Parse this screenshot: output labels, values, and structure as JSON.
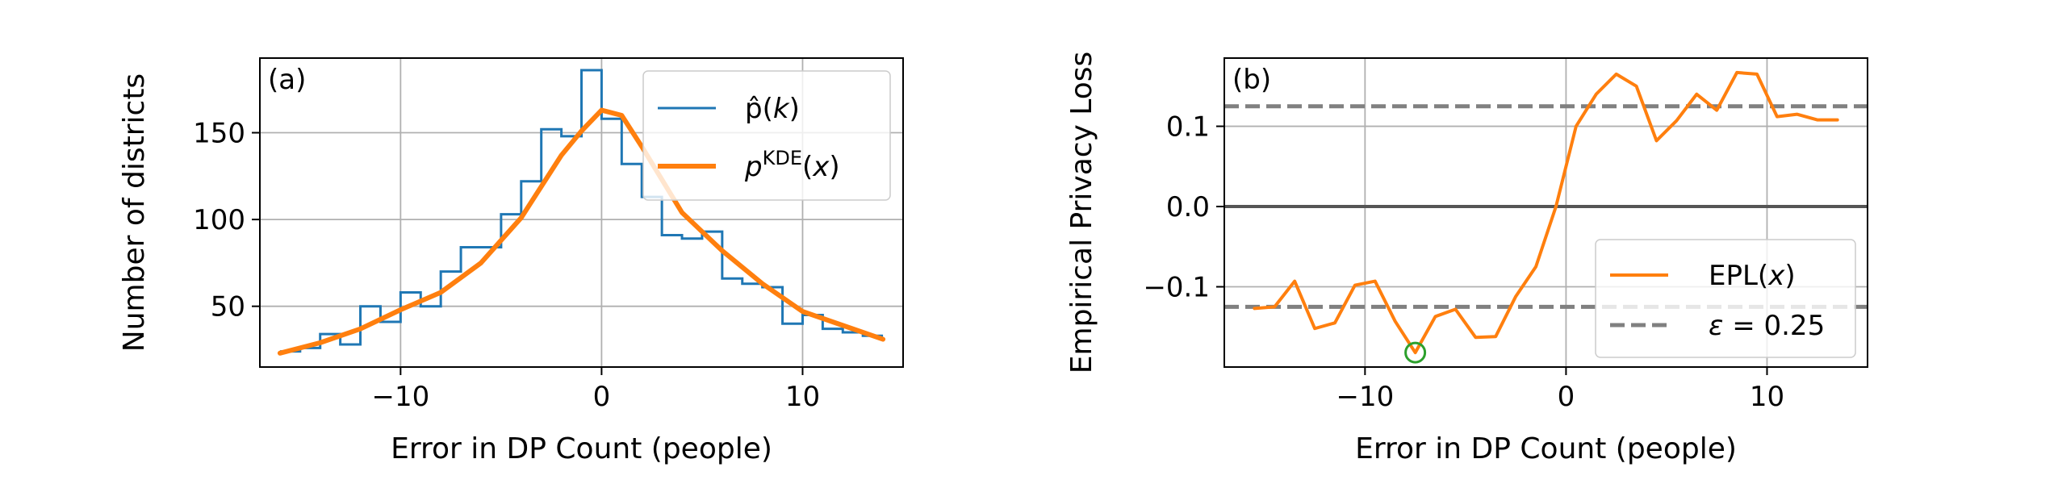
{
  "chart_data": [
    {
      "type": "line",
      "panel_label": "(a)",
      "xlabel": "Error in DP Count (people)",
      "ylabel": "Number of districts",
      "xlim": [
        -17,
        15
      ],
      "ylim": [
        15,
        193
      ],
      "xticks": [
        -10,
        0,
        10
      ],
      "xtick_labels": [
        "−10",
        "0",
        "10"
      ],
      "yticks": [
        50,
        100,
        150
      ],
      "ytick_labels": [
        "50",
        "100",
        "150"
      ],
      "grid": true,
      "legend_position": "top-right",
      "series": [
        {
          "name": "p̂(k)",
          "legend_label": {
            "base": "p̂(",
            "var": "k",
            "close": ")"
          },
          "style": "step",
          "color": "#1f77b4",
          "x": [
            -15.5,
            -14.5,
            -13.5,
            -12.5,
            -11.5,
            -10.5,
            -9.5,
            -8.5,
            -7.5,
            -6.5,
            -5.5,
            -4.5,
            -3.5,
            -2.5,
            -1.5,
            -0.5,
            0.5,
            1.5,
            2.5,
            3.5,
            4.5,
            5.5,
            6.5,
            7.5,
            8.5,
            9.5,
            10.5,
            11.5,
            12.5,
            13.5
          ],
          "values": [
            24,
            26,
            34,
            28,
            50,
            41,
            58,
            50,
            70,
            84,
            84,
            103,
            122,
            152,
            148,
            186,
            158,
            132,
            113,
            91,
            89,
            93,
            66,
            63,
            61,
            40,
            45,
            37,
            35,
            33
          ]
        },
        {
          "name": "pKDE(x)",
          "legend_label": {
            "base": "p",
            "sup": "KDE",
            "var": "x"
          },
          "style": "line",
          "color": "#ff7f0e",
          "x": [
            -16,
            -14,
            -12,
            -10,
            -8,
            -6,
            -4,
            -2,
            -1,
            0,
            1,
            2,
            4,
            6,
            8,
            10,
            12,
            14
          ],
          "values": [
            23,
            29,
            37,
            48,
            58,
            75,
            101,
            137,
            151,
            163,
            160,
            142,
            104,
            82,
            63,
            47,
            39,
            31
          ]
        }
      ]
    },
    {
      "type": "line",
      "panel_label": "(b)",
      "xlabel": "Error in DP Count (people)",
      "ylabel": "Empirical Privacy Loss",
      "xlim": [
        -17,
        15
      ],
      "ylim": [
        -0.2,
        0.185
      ],
      "xticks": [
        -10,
        0,
        10
      ],
      "xtick_labels": [
        "−10",
        "0",
        "10"
      ],
      "yticks": [
        -0.1,
        0.0,
        0.1
      ],
      "ytick_labels": [
        "−0.1",
        "0.0",
        "0.1"
      ],
      "grid": true,
      "legend_position": "lower-right",
      "series": [
        {
          "name": "EPL(x)",
          "legend_label": {
            "base": "EPL(",
            "var": "x",
            "close": ")"
          },
          "color": "#ff7f0e",
          "x": [
            -15.5,
            -14.5,
            -13.5,
            -12.5,
            -11.5,
            -10.5,
            -9.5,
            -8.5,
            -7.5,
            -6.5,
            -5.5,
            -4.5,
            -3.5,
            -2.5,
            -1.5,
            -0.5,
            0.5,
            1.5,
            2.5,
            3.5,
            4.5,
            5.5,
            6.5,
            7.5,
            8.5,
            9.5,
            10.5,
            11.5,
            12.5,
            13.5
          ],
          "values": [
            -0.127,
            -0.125,
            -0.093,
            -0.152,
            -0.145,
            -0.098,
            -0.093,
            -0.143,
            -0.182,
            -0.137,
            -0.128,
            -0.163,
            -0.162,
            -0.112,
            -0.075,
            0.0,
            0.1,
            0.14,
            0.165,
            0.15,
            0.082,
            0.107,
            0.14,
            0.12,
            0.167,
            0.165,
            0.112,
            0.115,
            0.108,
            0.108
          ]
        }
      ],
      "epsilon_lines": {
        "label": "ε = 0.25",
        "legend_label": {
          "var": "ε",
          "rest": " = 0.25"
        },
        "values": [
          0.125,
          -0.125
        ],
        "color": "#808080",
        "style": "dashed"
      },
      "zero_line": {
        "value": 0.0,
        "color": "#555555"
      },
      "highlight_point": {
        "x": -7.5,
        "y": -0.182,
        "color": "#2ca02c"
      }
    }
  ]
}
